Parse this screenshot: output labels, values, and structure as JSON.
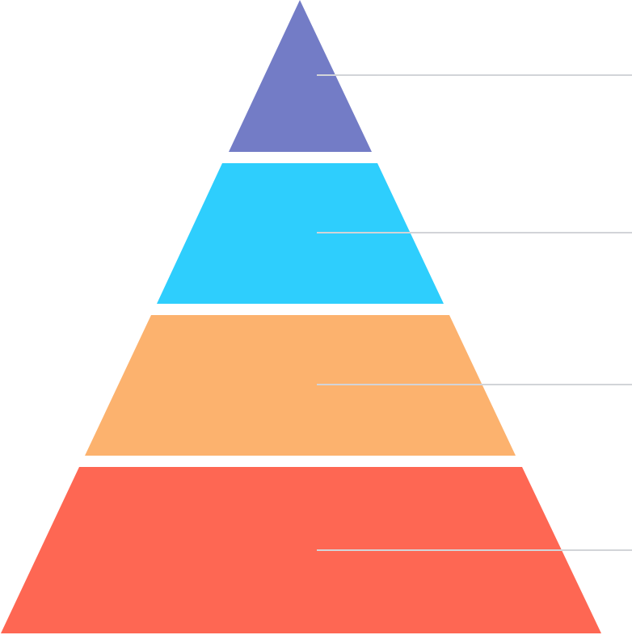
{
  "diagram": {
    "type": "pyramid",
    "levels": [
      {
        "id": "level-1",
        "color": "#737cc6"
      },
      {
        "id": "level-2",
        "color": "#2ecefd"
      },
      {
        "id": "level-3",
        "color": "#fcb26e"
      },
      {
        "id": "level-4",
        "color": "#fe6753"
      }
    ],
    "leader_line_color": "#d2d4d8"
  }
}
